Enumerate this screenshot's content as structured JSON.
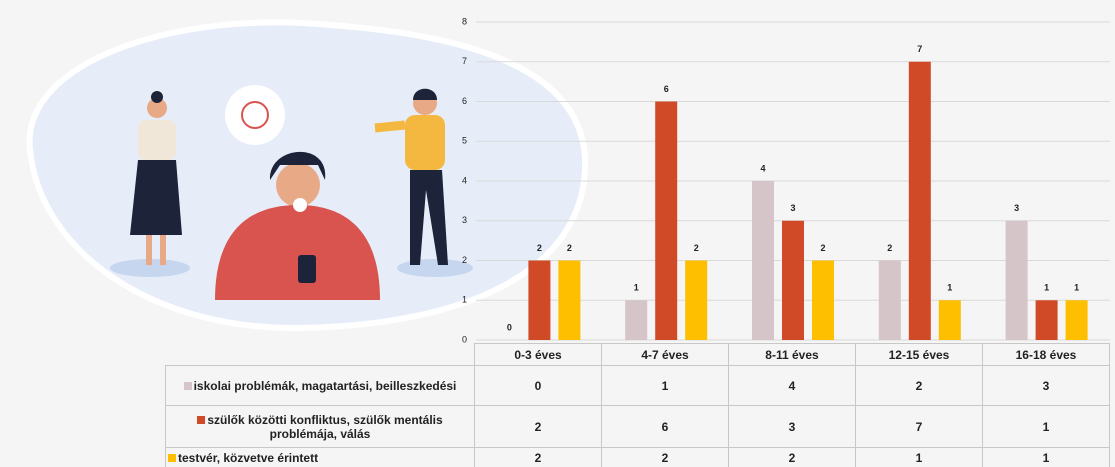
{
  "chart_data": {
    "type": "bar",
    "categories": [
      "0-3 éves",
      "4-7 éves",
      "8-11 éves",
      "12-15 éves",
      "16-18 éves"
    ],
    "series": [
      {
        "name": "iskolai problémák, magatartási, beilleszkedési",
        "color": "#d5c4c8",
        "values": [
          0,
          1,
          4,
          2,
          3
        ]
      },
      {
        "name": "szülők közötti konfliktus, szülők mentális problémája, válás",
        "color": "#d04a27",
        "values": [
          2,
          6,
          3,
          7,
          1
        ]
      },
      {
        "name": "testvér, közvetve érintett",
        "color": "#fdbf00",
        "values": [
          2,
          2,
          2,
          1,
          1
        ]
      }
    ],
    "ylim": [
      0,
      8
    ],
    "yticks": [
      0,
      1,
      2,
      3,
      4,
      5,
      6,
      7,
      8
    ],
    "grid": true,
    "data_labels": true,
    "data_table": true
  }
}
